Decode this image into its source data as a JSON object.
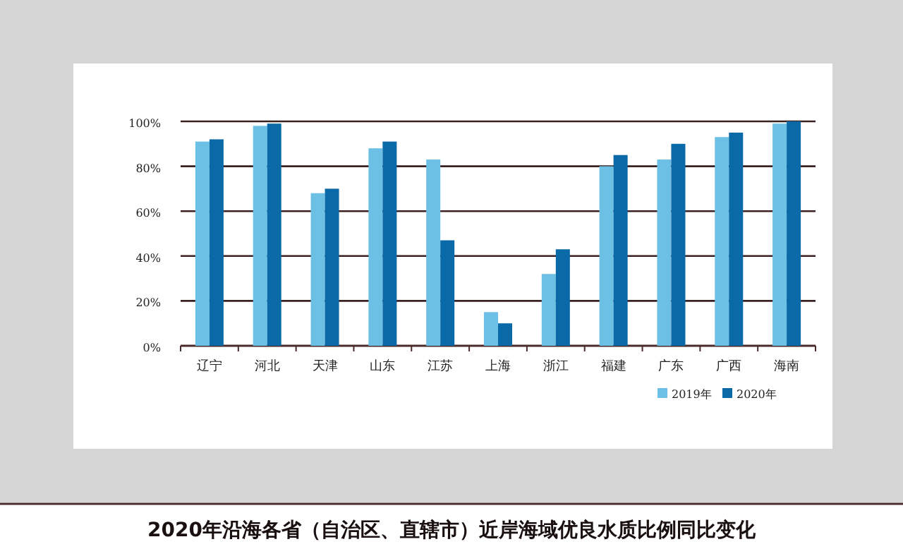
{
  "chart_data": {
    "type": "bar",
    "title": "2020年沿海各省（自治区、直辖市）近岸海域优良水质比例同比变化",
    "categories": [
      "辽宁",
      "河北",
      "天津",
      "山东",
      "江苏",
      "上海",
      "浙江",
      "福建",
      "广东",
      "广西",
      "海南"
    ],
    "series": [
      {
        "name": "2019年",
        "color": "#6cc0e5",
        "values": [
          91,
          98,
          68,
          88,
          83,
          15,
          32,
          80,
          83,
          93,
          99
        ]
      },
      {
        "name": "2020年",
        "color": "#0a6aa8",
        "values": [
          92,
          99,
          70,
          91,
          47,
          10,
          43,
          85,
          90,
          95,
          100
        ]
      }
    ],
    "ylim": [
      0,
      100
    ],
    "yticks": [
      {
        "value": 0,
        "label": "0%"
      },
      {
        "value": 20,
        "label": "20%"
      },
      {
        "value": 40,
        "label": "40%"
      },
      {
        "value": 60,
        "label": "60%"
      },
      {
        "value": 80,
        "label": "80%"
      },
      {
        "value": 100,
        "label": "100%"
      }
    ],
    "grid": "y",
    "legend": "bottom right"
  }
}
